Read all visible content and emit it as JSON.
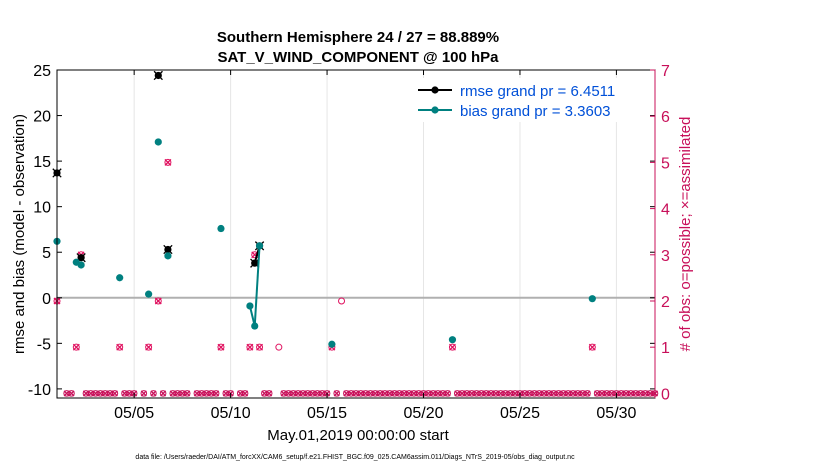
{
  "chart_data": {
    "type": "scatter",
    "title_line1": "Southern Hemisphere 24 / 27 = 88.889%",
    "title_line2": "SAT_V_WIND_COMPONENT @ 100 hPa",
    "xlabel": "May.01,2019 00:00:00 start",
    "ylabel_left": "rmse and bias (model - observation)",
    "ylabel_right": "# of obs: o=possible; ×=assimilated",
    "footer": "data file: /Users/raeder/DAI/ATM_forcXX/CAM6_setup/f.e21.FHIST_BGC.f09_025.CAM6assim.011/Diags_NTrS_2019-05/obs_diag_output.nc",
    "xlim": [
      1,
      32
    ],
    "ylim_left": [
      -11,
      25
    ],
    "ylim_right": [
      -0.1,
      7
    ],
    "x_ticks": [
      5,
      10,
      15,
      20,
      25,
      30
    ],
    "x_tick_labels": [
      "05/05",
      "05/10",
      "05/15",
      "05/20",
      "05/25",
      "05/30"
    ],
    "y_ticks_left": [
      -10,
      -5,
      0,
      5,
      10,
      15,
      20,
      25
    ],
    "y_tick_labels_left": [
      "-10",
      "-5",
      "0",
      "5",
      "10",
      "15",
      "20",
      "25"
    ],
    "y_ticks_right": [
      0,
      1,
      2,
      3,
      4,
      5,
      6,
      7
    ],
    "y_tick_labels_right": [
      "0",
      "1",
      "2",
      "3",
      "4",
      "5",
      "6",
      "7"
    ],
    "zero_line": 0,
    "legend_position": "top-right",
    "series": [
      {
        "name": "rmse grand pr = 6.4511",
        "color": "#000000",
        "x": [
          1.0,
          2.25,
          6.25,
          6.75,
          11.25,
          11.5
        ],
        "values": [
          13.7,
          4.4,
          24.4,
          5.3,
          3.8,
          5.7
        ],
        "connected_segments": [
          [
            4,
            5
          ]
        ]
      },
      {
        "name": "bias grand pr = 3.3603",
        "color": "#008080",
        "x": [
          1.0,
          2.0,
          2.25,
          4.25,
          5.75,
          6.25,
          6.75,
          9.5,
          11.0,
          11.25,
          11.5,
          15.25,
          21.5,
          28.75
        ],
        "values": [
          6.2,
          3.9,
          3.6,
          2.2,
          0.4,
          17.1,
          4.6,
          7.6,
          -0.9,
          -3.1,
          5.7,
          -5.1,
          -4.6,
          -0.1
        ],
        "connected_segments": [
          [
            8,
            9
          ],
          [
            9,
            10
          ]
        ]
      }
    ],
    "obs_possible": {
      "color": "#e0115f",
      "x": [
        1.0,
        2.0,
        2.25,
        4.25,
        5.75,
        6.25,
        6.75,
        9.5,
        11.0,
        11.25,
        11.5,
        12.5,
        15.25,
        15.75,
        21.5,
        28.75
      ],
      "values": [
        2,
        1,
        3,
        1,
        1,
        2,
        5,
        1,
        1,
        3,
        1,
        1,
        1,
        2,
        1,
        1
      ]
    },
    "obs_assimilated": {
      "color": "#e0115f",
      "x": [
        1.0,
        2.0,
        2.25,
        4.25,
        5.75,
        6.25,
        6.75,
        9.5,
        11.0,
        11.25,
        11.5,
        15.25,
        21.5,
        28.75
      ],
      "values": [
        2,
        1,
        3,
        1,
        1,
        2,
        5,
        1,
        1,
        3,
        1,
        1,
        1,
        1
      ]
    },
    "zero_obs_x_start": 1.0,
    "zero_obs_x_end": 32.0,
    "zero_obs_step": 0.25,
    "zero_obs_x_exclude": [
      1.0,
      2.0,
      2.25,
      4.25,
      5.75,
      6.25,
      6.75,
      9.5,
      11.0,
      11.25,
      11.5,
      12.5,
      15.25,
      15.75,
      21.5,
      28.75,
      1.25,
      5.25,
      8.0,
      10.25,
      12.25
    ],
    "colors": {
      "left_axis": "#000000",
      "right_axis": "#c8105a",
      "legend_text": "#0050d8",
      "zero_line": "#b0b0b0",
      "grid": "#e6e6e6"
    }
  }
}
